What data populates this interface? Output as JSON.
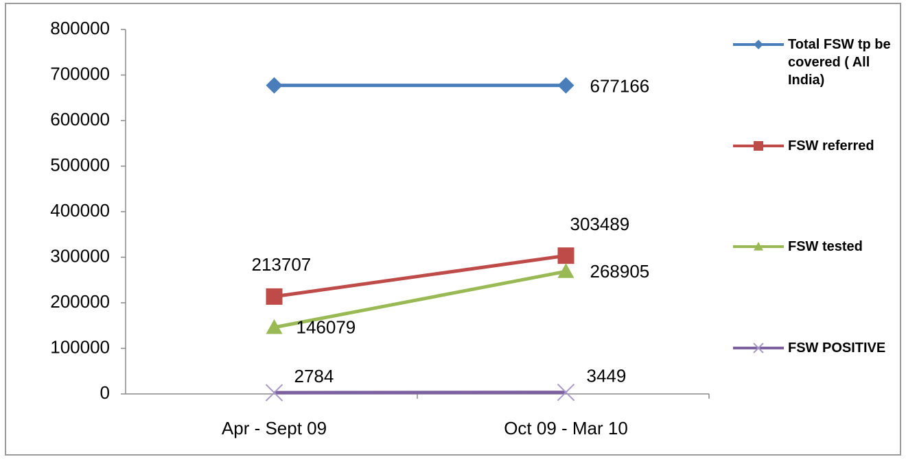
{
  "chart_data": {
    "type": "line",
    "categories": [
      "Apr - Sept 09",
      "Oct 09 - Mar 10"
    ],
    "series": [
      {
        "name": "Total FSW tp be covered ( All India)",
        "color": "#4a7ebb",
        "marker": "diamond",
        "values": [
          677166,
          677166
        ],
        "value_labels": [
          null,
          "677166"
        ]
      },
      {
        "name": "FSW referred",
        "color": "#be4b48",
        "marker": "square",
        "values": [
          213707,
          303489
        ],
        "value_labels": [
          "213707",
          "303489"
        ]
      },
      {
        "name": "FSW tested",
        "color": "#98b954",
        "marker": "triangle",
        "values": [
          146079,
          268905
        ],
        "value_labels": [
          "146079",
          "268905"
        ]
      },
      {
        "name": "FSW POSITIVE",
        "color": "#7d60a0",
        "marker": "x",
        "values": [
          2784,
          3449
        ],
        "value_labels": [
          "2784",
          "3449"
        ]
      }
    ],
    "ylim": [
      0,
      800000
    ],
    "yticks": [
      0,
      100000,
      200000,
      300000,
      400000,
      500000,
      600000,
      700000,
      800000
    ],
    "grid": false,
    "legend": "right"
  }
}
